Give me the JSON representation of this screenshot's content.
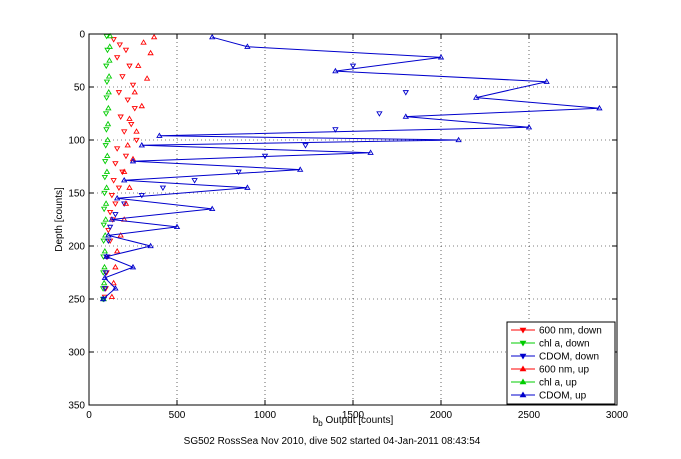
{
  "chart_data": {
    "type": "scatter",
    "title": "",
    "xlabel": "b",
    "xlabel_sub": "b",
    "xlabel_rest": " Output [counts]",
    "ylabel": "Depth [counts]",
    "caption": "SG502 RossSea Nov 2010, dive 502 started 04-Jan-2011 08:43:54",
    "xlim": [
      0,
      3000
    ],
    "ylim": [
      0,
      350
    ],
    "y_reversed": true,
    "grid": true,
    "xticks": [
      "0",
      "500",
      "1000",
      "1500",
      "2000",
      "2500",
      "3000"
    ],
    "yticks": [
      "0",
      "50",
      "100",
      "150",
      "200",
      "250",
      "300",
      "350"
    ],
    "legend_position": "bottom-right",
    "series": [
      {
        "name": "600 nm, down",
        "color": "#ff0000",
        "marker": "triangle-down",
        "line": false,
        "points": [
          [
            140,
            5
          ],
          [
            175,
            10
          ],
          [
            210,
            15
          ],
          [
            160,
            22
          ],
          [
            230,
            30
          ],
          [
            190,
            40
          ],
          [
            250,
            48
          ],
          [
            170,
            55
          ],
          [
            220,
            62
          ],
          [
            260,
            70
          ],
          [
            180,
            78
          ],
          [
            240,
            85
          ],
          [
            200,
            92
          ],
          [
            270,
            100
          ],
          [
            160,
            108
          ],
          [
            210,
            115
          ],
          [
            150,
            122
          ],
          [
            190,
            130
          ],
          [
            140,
            138
          ],
          [
            170,
            145
          ],
          [
            130,
            152
          ],
          [
            150,
            160
          ],
          [
            120,
            168
          ],
          [
            135,
            175
          ],
          [
            110,
            185
          ],
          [
            120,
            195
          ],
          [
            105,
            210
          ],
          [
            100,
            225
          ],
          [
            95,
            240
          ],
          [
            90,
            248
          ]
        ]
      },
      {
        "name": "chl a, down",
        "color": "#00cc00",
        "marker": "triangle-down",
        "line": false,
        "points": [
          [
            100,
            2
          ],
          [
            105,
            15
          ],
          [
            98,
            30
          ],
          [
            102,
            45
          ],
          [
            100,
            60
          ],
          [
            97,
            75
          ],
          [
            99,
            90
          ],
          [
            95,
            105
          ],
          [
            92,
            120
          ],
          [
            90,
            135
          ],
          [
            88,
            150
          ],
          [
            86,
            165
          ],
          [
            84,
            180
          ],
          [
            83,
            195
          ],
          [
            82,
            210
          ],
          [
            81,
            225
          ],
          [
            80,
            240
          ],
          [
            80,
            250
          ]
        ]
      },
      {
        "name": "CDOM, down",
        "color": "#0000cc",
        "marker": "triangle-down",
        "line": false,
        "points": [
          [
            1500,
            30
          ],
          [
            1800,
            55
          ],
          [
            1650,
            75
          ],
          [
            1400,
            90
          ],
          [
            1230,
            105
          ],
          [
            1000,
            115
          ],
          [
            850,
            130
          ],
          [
            600,
            138
          ],
          [
            420,
            145
          ],
          [
            300,
            152
          ],
          [
            200,
            160
          ],
          [
            150,
            170
          ],
          [
            120,
            182
          ],
          [
            110,
            195
          ],
          [
            100,
            210
          ],
          [
            95,
            225
          ],
          [
            90,
            240
          ],
          [
            85,
            250
          ]
        ]
      },
      {
        "name": "600 nm, up",
        "color": "#ff0000",
        "marker": "triangle-up",
        "line": false,
        "points": [
          [
            130,
            248
          ],
          [
            140,
            235
          ],
          [
            150,
            220
          ],
          [
            160,
            205
          ],
          [
            180,
            190
          ],
          [
            200,
            175
          ],
          [
            210,
            160
          ],
          [
            230,
            145
          ],
          [
            200,
            130
          ],
          [
            250,
            118
          ],
          [
            220,
            105
          ],
          [
            270,
            92
          ],
          [
            230,
            80
          ],
          [
            300,
            68
          ],
          [
            260,
            55
          ],
          [
            330,
            42
          ],
          [
            280,
            30
          ],
          [
            350,
            18
          ],
          [
            310,
            8
          ],
          [
            370,
            3
          ]
        ]
      },
      {
        "name": "chl a, up",
        "color": "#00cc00",
        "marker": "triangle-up",
        "line": false,
        "points": [
          [
            84,
            250
          ],
          [
            86,
            235
          ],
          [
            88,
            220
          ],
          [
            90,
            205
          ],
          [
            92,
            190
          ],
          [
            95,
            175
          ],
          [
            97,
            160
          ],
          [
            100,
            145
          ],
          [
            102,
            130
          ],
          [
            104,
            115
          ],
          [
            106,
            100
          ],
          [
            108,
            85
          ],
          [
            110,
            70
          ],
          [
            112,
            55
          ],
          [
            114,
            40
          ],
          [
            116,
            25
          ],
          [
            118,
            12
          ],
          [
            120,
            2
          ]
        ]
      },
      {
        "name": "CDOM, up",
        "color": "#0000cc",
        "marker": "triangle-up",
        "line": true,
        "points": [
          [
            80,
            250
          ],
          [
            150,
            240
          ],
          [
            90,
            230
          ],
          [
            250,
            220
          ],
          [
            100,
            210
          ],
          [
            350,
            200
          ],
          [
            110,
            190
          ],
          [
            500,
            182
          ],
          [
            130,
            175
          ],
          [
            700,
            165
          ],
          [
            160,
            155
          ],
          [
            900,
            145
          ],
          [
            200,
            138
          ],
          [
            1200,
            128
          ],
          [
            250,
            120
          ],
          [
            1600,
            112
          ],
          [
            300,
            105
          ],
          [
            2100,
            100
          ],
          [
            400,
            96
          ],
          [
            2500,
            88
          ],
          [
            1800,
            78
          ],
          [
            2900,
            70
          ],
          [
            2200,
            60
          ],
          [
            2600,
            45
          ],
          [
            1400,
            35
          ],
          [
            2000,
            22
          ],
          [
            900,
            12
          ],
          [
            700,
            3
          ]
        ]
      }
    ]
  }
}
